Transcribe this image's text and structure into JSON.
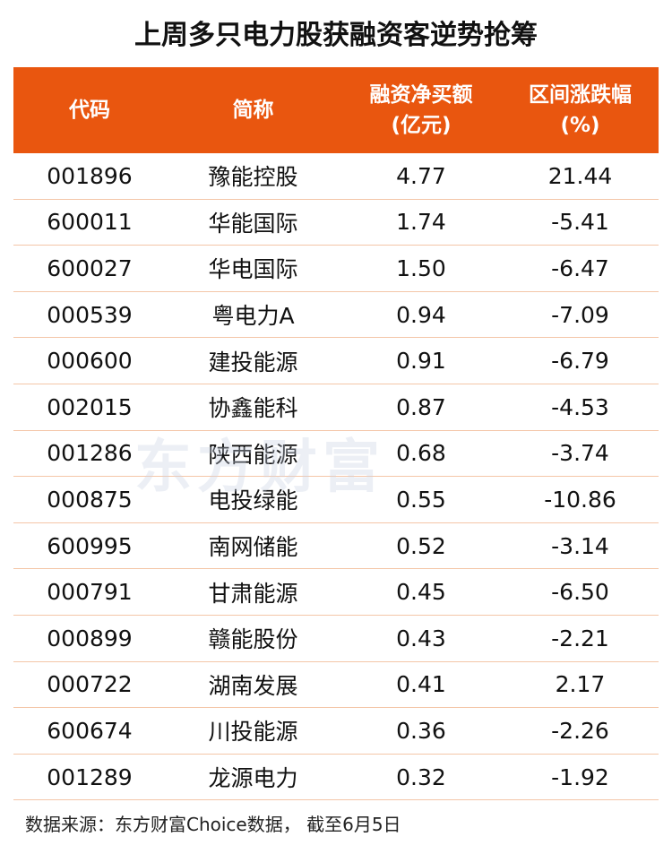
{
  "title": "上周多只电力股获融资客逆势抢筹",
  "table": {
    "header": [
      [
        "代码"
      ],
      [
        "简称"
      ],
      [
        "融资净买额",
        "(亿元)"
      ],
      [
        "区间涨跌幅",
        "(%)"
      ]
    ],
    "rows": [
      [
        "001896",
        "豫能控股",
        "4.77",
        "21.44"
      ],
      [
        "600011",
        "华能国际",
        "1.74",
        "-5.41"
      ],
      [
        "600027",
        "华电国际",
        "1.50",
        "-6.47"
      ],
      [
        "000539",
        "粤电力A",
        "0.94",
        "-7.09"
      ],
      [
        "000600",
        "建投能源",
        "0.91",
        "-6.79"
      ],
      [
        "002015",
        "协鑫能科",
        "0.87",
        "-4.53"
      ],
      [
        "001286",
        "陕西能源",
        "0.68",
        "-3.74"
      ],
      [
        "000875",
        "电投绿能",
        "0.55",
        "-10.86"
      ],
      [
        "600995",
        "南网储能",
        "0.52",
        "-3.14"
      ],
      [
        "000791",
        "甘肃能源",
        "0.45",
        "-6.50"
      ],
      [
        "000899",
        "赣能股份",
        "0.43",
        "-2.21"
      ],
      [
        "000722",
        "湖南发展",
        "0.41",
        "2.17"
      ],
      [
        "600674",
        "川投能源",
        "0.36",
        "-2.26"
      ],
      [
        "001289",
        "龙源电力",
        "0.32",
        "-1.92"
      ]
    ]
  },
  "watermark": "东方财富",
  "footer": "数据来源：东方财富Choice数据， 截至6月5日"
}
